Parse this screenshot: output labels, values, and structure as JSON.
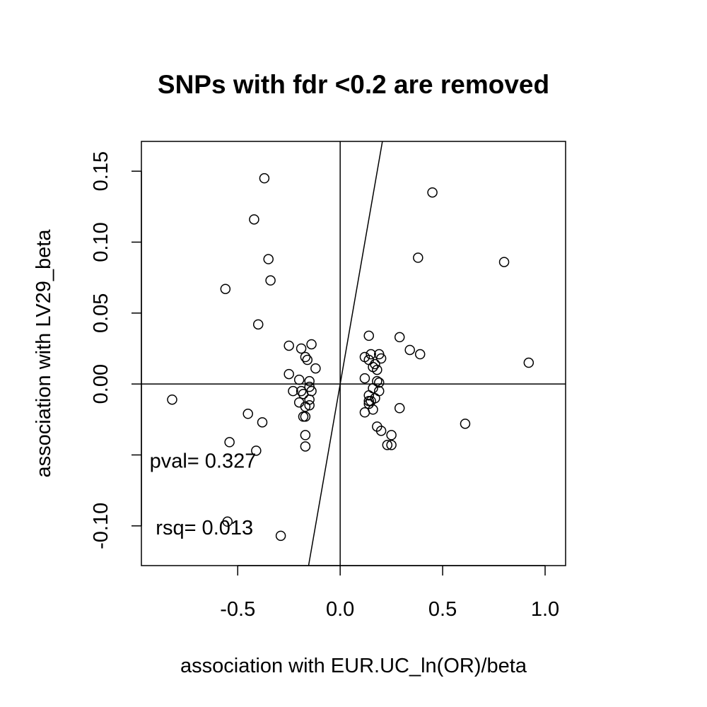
{
  "chart_data": {
    "type": "scatter",
    "title": "SNPs with fdr <0.2 are removed",
    "xlabel": "association with EUR.UC_ln(OR)/beta",
    "ylabel": "association with LV29_beta",
    "xlim": [
      -0.97,
      1.1
    ],
    "ylim": [
      -0.128,
      0.171
    ],
    "x_ticks": [
      -0.5,
      0.0,
      0.5,
      1.0
    ],
    "x_tick_labels": [
      "-0.5",
      "0.0",
      "0.5",
      "1.0"
    ],
    "y_ticks": [
      -0.1,
      -0.05,
      0.0,
      0.05,
      0.1,
      0.15
    ],
    "y_tick_labels": [
      "-0.10",
      "",
      "0.00",
      "0.05",
      "0.10",
      "0.15"
    ],
    "grid": false,
    "reference_lines": {
      "horizontal_y": 0,
      "vertical_x": 0,
      "fit_line": {
        "intercept": 0,
        "slope": 0.83
      }
    },
    "annotations": [
      {
        "text": "pval= 0.327",
        "x": -0.93,
        "y": -0.054
      },
      {
        "text": "rsq= 0.013",
        "x": -0.9,
        "y": -0.101
      }
    ],
    "points": {
      "x": [
        -0.37,
        0.45,
        -0.42,
        0.38,
        -0.35,
        0.8,
        -0.34,
        -0.56,
        -0.4,
        0.14,
        0.29,
        -0.14,
        -0.25,
        -0.19,
        0.34,
        0.39,
        -0.17,
        -0.16,
        0.12,
        0.15,
        0.19,
        0.2,
        0.14,
        0.92,
        0.17,
        -0.12,
        0.16,
        0.18,
        -0.25,
        0.12,
        -0.2,
        -0.15,
        0.18,
        0.19,
        -0.15,
        0.16,
        -0.19,
        -0.23,
        -0.14,
        0.19,
        -0.18,
        0.14,
        0.17,
        -0.15,
        0.15,
        -0.2,
        0.14,
        -0.82,
        0.14,
        -0.15,
        -0.17,
        0.29,
        0.16,
        0.12,
        -0.45,
        -0.18,
        -0.17,
        -0.38,
        0.61,
        0.18,
        0.2,
        -0.17,
        0.25,
        -0.54,
        0.23,
        0.25,
        -0.41,
        -0.17,
        -0.55,
        -0.29
      ],
      "y": [
        0.145,
        0.135,
        0.116,
        0.089,
        0.088,
        0.086,
        0.073,
        0.067,
        0.042,
        0.034,
        0.033,
        0.028,
        0.027,
        0.025,
        0.024,
        0.021,
        0.019,
        0.017,
        0.019,
        0.021,
        0.021,
        0.018,
        0.017,
        0.015,
        0.014,
        0.011,
        0.012,
        0.01,
        0.007,
        0.004,
        0.003,
        0.002,
        0.002,
        0.001,
        -0.002,
        -0.003,
        -0.005,
        -0.005,
        -0.005,
        -0.005,
        -0.007,
        -0.008,
        -0.01,
        -0.011,
        -0.012,
        -0.013,
        -0.012,
        -0.011,
        -0.014,
        -0.015,
        -0.016,
        -0.017,
        -0.018,
        -0.02,
        -0.021,
        -0.023,
        -0.023,
        -0.027,
        -0.028,
        -0.03,
        -0.033,
        -0.036,
        -0.036,
        -0.041,
        -0.043,
        -0.043,
        -0.047,
        -0.044,
        -0.097,
        -0.107
      ]
    }
  }
}
